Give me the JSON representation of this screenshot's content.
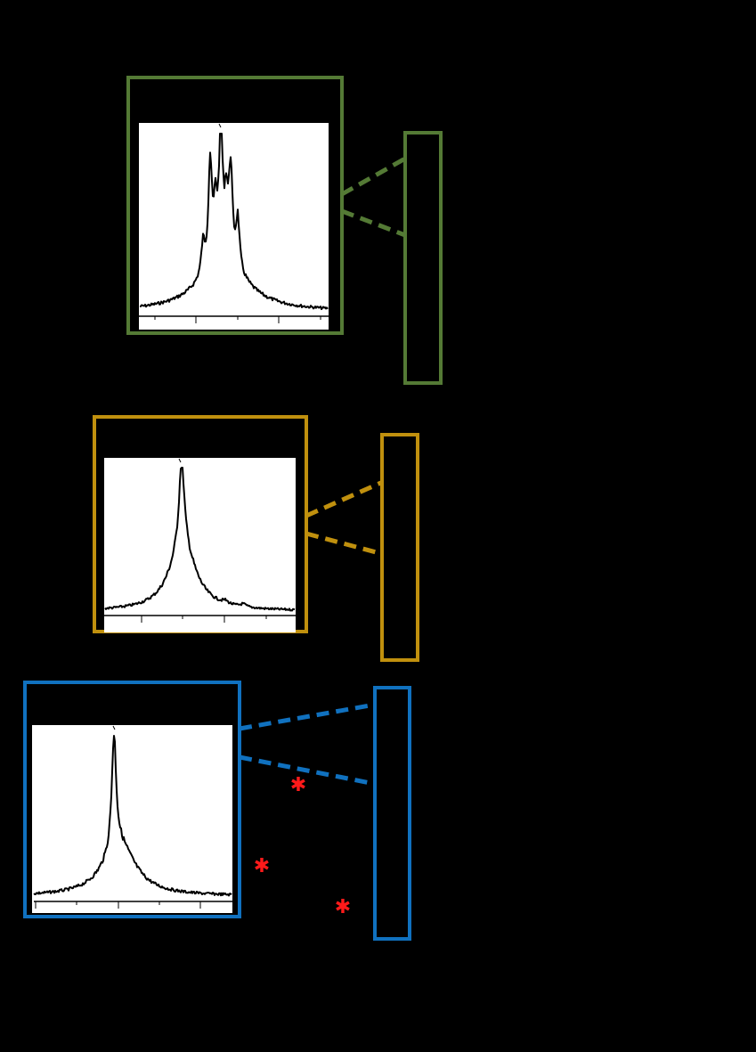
{
  "colors": {
    "background": "#000000",
    "green": "#547a35",
    "gold": "#c0900e",
    "blue": "#1071bf",
    "marker": "#ff1a1a",
    "trace": "#000000",
    "plot_bg": "#ffffff"
  },
  "panels": [
    {
      "name": "green",
      "color_key": "green",
      "description_shape": "multiplet",
      "marker_count": 0
    },
    {
      "name": "gold",
      "color_key": "gold",
      "description_shape": "single-peak",
      "marker_count": 0
    },
    {
      "name": "blue",
      "color_key": "blue",
      "description_shape": "single-sharp-peak",
      "marker_count": 3
    }
  ],
  "markers": {
    "glyph": "✱"
  }
}
